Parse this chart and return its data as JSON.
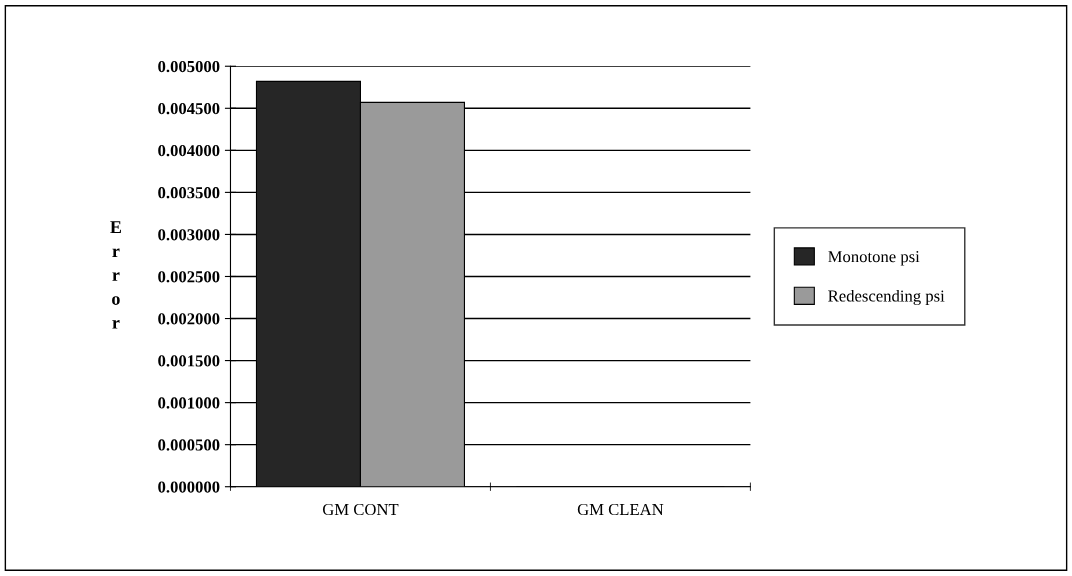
{
  "chart_data": {
    "type": "bar",
    "ylabel": "Error",
    "categories": [
      "GM CONT",
      "GM CLEAN"
    ],
    "series": [
      {
        "name": "Monotone psi",
        "color": "#262626",
        "values": [
          0.00482,
          0
        ]
      },
      {
        "name": "Redescending psi",
        "color": "#9a9a9a",
        "values": [
          0.00457,
          0
        ]
      }
    ],
    "ylim": [
      0,
      0.005
    ],
    "yticks": [
      {
        "value": 0,
        "label": "0.000000"
      },
      {
        "value": 0.0005,
        "label": "0.000500"
      },
      {
        "value": 0.001,
        "label": "0.001000"
      },
      {
        "value": 0.0015,
        "label": "0.001500"
      },
      {
        "value": 0.002,
        "label": "0.002000"
      },
      {
        "value": 0.0025,
        "label": "0.002500"
      },
      {
        "value": 0.003,
        "label": "0.003000"
      },
      {
        "value": 0.0035,
        "label": "0.003500"
      },
      {
        "value": 0.004,
        "label": "0.004000"
      },
      {
        "value": 0.0045,
        "label": "0.004500"
      },
      {
        "value": 0.005,
        "label": "0.005000"
      }
    ],
    "grid": "y",
    "legend": "right"
  }
}
